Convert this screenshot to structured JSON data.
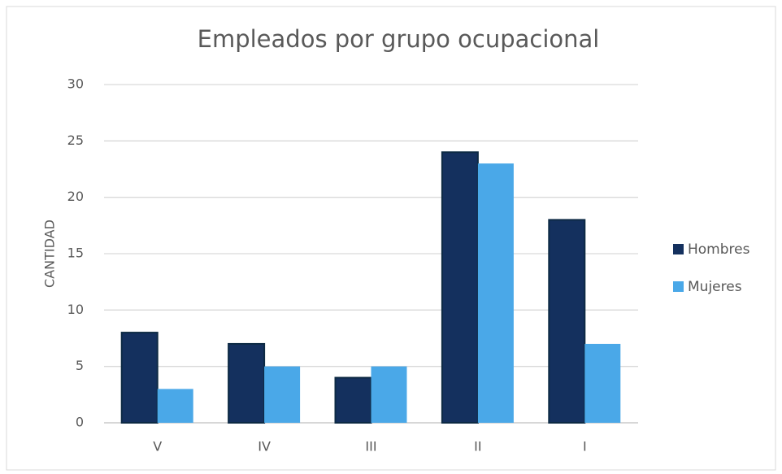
{
  "chart_data": {
    "type": "bar",
    "title": "Empleados por grupo ocupacional",
    "y_label": "CANTIDAD",
    "categories": [
      "V",
      "IV",
      "III",
      "II",
      "I"
    ],
    "series": [
      {
        "name": "Hombres",
        "color": "#14305e",
        "values": [
          8,
          7,
          4,
          24,
          18
        ]
      },
      {
        "name": "Mujeres",
        "color": "#4aa8e8",
        "values": [
          3,
          5,
          5,
          23,
          7
        ]
      }
    ],
    "ylim": [
      0,
      30
    ],
    "yticks": [
      0,
      5,
      10,
      15,
      20,
      25,
      30
    ],
    "grid": true,
    "legend": "right"
  }
}
